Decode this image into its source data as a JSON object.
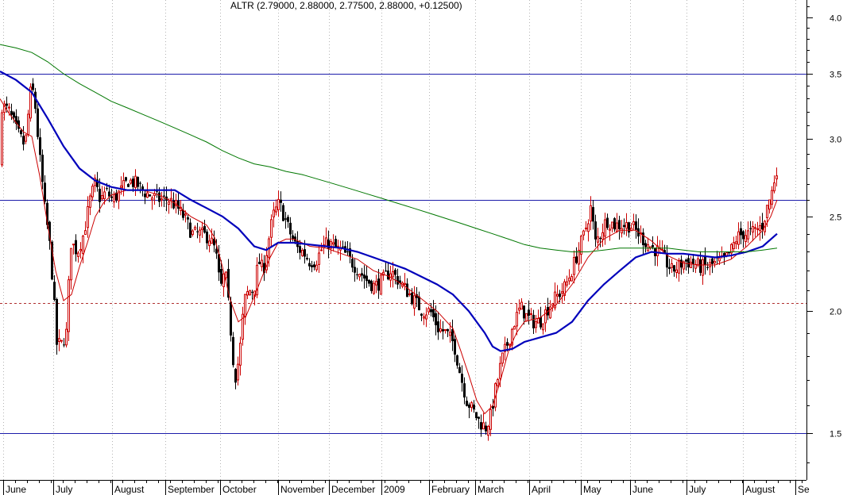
{
  "chart_data": {
    "type": "candlestick",
    "title": "ALTR (2.79000, 2.88000, 2.77500, 2.88000, +0.12500)",
    "scale": "log",
    "ylim": [
      1.32,
      4.3
    ],
    "y_ticks": [
      {
        "value": 4.0,
        "label": "4.0"
      },
      {
        "value": 3.5,
        "label": "3.5"
      },
      {
        "value": 3.0,
        "label": "3.0"
      },
      {
        "value": 2.5,
        "label": "2.5"
      },
      {
        "value": 2.0,
        "label": "2.0"
      },
      {
        "value": 1.5,
        "label": "1.5"
      }
    ],
    "x_labels": [
      "June",
      "July",
      "August",
      "September",
      "October",
      "November",
      "December",
      "2009",
      "February",
      "March",
      "April",
      "May",
      "June",
      "July",
      "August",
      "Se"
    ],
    "horizontal_lines": [
      {
        "value": 3.5,
        "style": "solid",
        "color": "#1c1caa"
      },
      {
        "value": 2.6,
        "style": "solid",
        "color": "#1c1caa"
      },
      {
        "value": 2.04,
        "style": "dashed",
        "color": "#b03030"
      },
      {
        "value": 1.5,
        "style": "solid",
        "color": "#1c1caa"
      }
    ],
    "grid": true,
    "colors": {
      "up": "#cc0000",
      "down": "#000000",
      "ma_short": "#cc0000",
      "ma_mid": "#0000bb",
      "ma_long": "#007700",
      "grid": "#b4b4b4"
    },
    "price_path": [
      [
        1,
        3.25
      ],
      [
        10,
        3.2
      ],
      [
        20,
        3.05
      ],
      [
        30,
        2.95
      ],
      [
        38,
        3.4
      ],
      [
        42,
        3.3
      ],
      [
        48,
        2.9
      ],
      [
        55,
        2.55
      ],
      [
        62,
        2.3
      ],
      [
        70,
        1.85
      ],
      [
        76,
        1.85
      ],
      [
        82,
        1.9
      ],
      [
        88,
        2.35
      ],
      [
        96,
        2.3
      ],
      [
        104,
        2.4
      ],
      [
        112,
        2.6
      ],
      [
        118,
        2.7
      ],
      [
        125,
        2.6
      ],
      [
        132,
        2.65
      ],
      [
        140,
        2.6
      ],
      [
        150,
        2.65
      ],
      [
        160,
        2.72
      ],
      [
        170,
        2.7
      ],
      [
        180,
        2.65
      ],
      [
        190,
        2.62
      ],
      [
        200,
        2.6
      ],
      [
        212,
        2.6
      ],
      [
        222,
        2.55
      ],
      [
        232,
        2.48
      ],
      [
        240,
        2.4
      ],
      [
        250,
        2.4
      ],
      [
        262,
        2.38
      ],
      [
        270,
        2.3
      ],
      [
        276,
        2.1
      ],
      [
        282,
        2.2
      ],
      [
        288,
        1.95
      ],
      [
        294,
        1.7
      ],
      [
        300,
        1.8
      ],
      [
        306,
        2.05
      ],
      [
        312,
        2.1
      ],
      [
        318,
        2.1
      ],
      [
        324,
        2.25
      ],
      [
        330,
        2.2
      ],
      [
        336,
        2.35
      ],
      [
        342,
        2.5
      ],
      [
        350,
        2.58
      ],
      [
        356,
        2.5
      ],
      [
        364,
        2.4
      ],
      [
        372,
        2.32
      ],
      [
        380,
        2.3
      ],
      [
        388,
        2.25
      ],
      [
        396,
        2.25
      ],
      [
        404,
        2.32
      ],
      [
        412,
        2.35
      ],
      [
        420,
        2.32
      ],
      [
        430,
        2.3
      ],
      [
        440,
        2.25
      ],
      [
        450,
        2.2
      ],
      [
        460,
        2.15
      ],
      [
        470,
        2.12
      ],
      [
        480,
        2.15
      ],
      [
        490,
        2.2
      ],
      [
        500,
        2.15
      ],
      [
        510,
        2.1
      ],
      [
        520,
        2.05
      ],
      [
        530,
        2.0
      ],
      [
        540,
        2.0
      ],
      [
        550,
        1.92
      ],
      [
        560,
        1.9
      ],
      [
        570,
        1.85
      ],
      [
        578,
        1.72
      ],
      [
        586,
        1.62
      ],
      [
        594,
        1.58
      ],
      [
        602,
        1.54
      ],
      [
        610,
        1.52
      ],
      [
        616,
        1.56
      ],
      [
        622,
        1.66
      ],
      [
        630,
        1.78
      ],
      [
        638,
        1.86
      ],
      [
        646,
        1.95
      ],
      [
        654,
        2.02
      ],
      [
        662,
        1.97
      ],
      [
        670,
        1.95
      ],
      [
        678,
        1.95
      ],
      [
        686,
        2.0
      ],
      [
        694,
        2.05
      ],
      [
        702,
        2.08
      ],
      [
        710,
        2.12
      ],
      [
        718,
        2.2
      ],
      [
        726,
        2.3
      ],
      [
        734,
        2.4
      ],
      [
        742,
        2.55
      ],
      [
        748,
        2.35
      ],
      [
        754,
        2.4
      ],
      [
        762,
        2.48
      ],
      [
        772,
        2.45
      ],
      [
        782,
        2.45
      ],
      [
        792,
        2.45
      ],
      [
        802,
        2.4
      ],
      [
        812,
        2.35
      ],
      [
        820,
        2.32
      ],
      [
        828,
        2.3
      ],
      [
        836,
        2.25
      ],
      [
        844,
        2.2
      ],
      [
        852,
        2.22
      ],
      [
        860,
        2.25
      ],
      [
        870,
        2.24
      ],
      [
        880,
        2.22
      ],
      [
        890,
        2.22
      ],
      [
        900,
        2.24
      ],
      [
        910,
        2.25
      ],
      [
        918,
        2.3
      ],
      [
        926,
        2.38
      ],
      [
        934,
        2.4
      ],
      [
        942,
        2.4
      ],
      [
        950,
        2.42
      ],
      [
        958,
        2.45
      ],
      [
        964,
        2.55
      ],
      [
        970,
        2.65
      ],
      [
        976,
        2.8
      ]
    ],
    "moving_averages": [
      {
        "color": "#cc0000",
        "points": [
          [
            0,
            3.3
          ],
          [
            10,
            3.2
          ],
          [
            20,
            3.12
          ],
          [
            30,
            3.05
          ],
          [
            40,
            3.02
          ],
          [
            50,
            2.75
          ],
          [
            60,
            2.45
          ],
          [
            70,
            2.2
          ],
          [
            80,
            2.05
          ],
          [
            90,
            2.08
          ],
          [
            100,
            2.22
          ],
          [
            110,
            2.35
          ],
          [
            120,
            2.5
          ],
          [
            130,
            2.58
          ],
          [
            140,
            2.63
          ],
          [
            160,
            2.66
          ],
          [
            180,
            2.66
          ],
          [
            200,
            2.63
          ],
          [
            220,
            2.58
          ],
          [
            240,
            2.5
          ],
          [
            260,
            2.45
          ],
          [
            270,
            2.38
          ],
          [
            280,
            2.22
          ],
          [
            290,
            2.05
          ],
          [
            300,
            1.95
          ],
          [
            310,
            1.98
          ],
          [
            320,
            2.07
          ],
          [
            330,
            2.17
          ],
          [
            340,
            2.27
          ],
          [
            350,
            2.35
          ],
          [
            360,
            2.37
          ],
          [
            370,
            2.37
          ],
          [
            390,
            2.33
          ],
          [
            410,
            2.32
          ],
          [
            430,
            2.29
          ],
          [
            450,
            2.26
          ],
          [
            470,
            2.2
          ],
          [
            490,
            2.17
          ],
          [
            510,
            2.12
          ],
          [
            530,
            2.06
          ],
          [
            550,
            2.0
          ],
          [
            570,
            1.92
          ],
          [
            580,
            1.82
          ],
          [
            590,
            1.72
          ],
          [
            600,
            1.62
          ],
          [
            610,
            1.57
          ],
          [
            620,
            1.6
          ],
          [
            630,
            1.7
          ],
          [
            640,
            1.82
          ],
          [
            650,
            1.9
          ],
          [
            660,
            1.95
          ],
          [
            680,
            1.97
          ],
          [
            700,
            2.03
          ],
          [
            720,
            2.13
          ],
          [
            740,
            2.27
          ],
          [
            760,
            2.37
          ],
          [
            780,
            2.42
          ],
          [
            800,
            2.42
          ],
          [
            820,
            2.36
          ],
          [
            840,
            2.28
          ],
          [
            860,
            2.24
          ],
          [
            880,
            2.23
          ],
          [
            900,
            2.23
          ],
          [
            920,
            2.26
          ],
          [
            940,
            2.33
          ],
          [
            960,
            2.42
          ],
          [
            970,
            2.5
          ],
          [
            978,
            2.6
          ]
        ]
      },
      {
        "color": "#0000bb",
        "width": 2.2,
        "points": [
          [
            0,
            3.52
          ],
          [
            20,
            3.45
          ],
          [
            40,
            3.35
          ],
          [
            60,
            3.15
          ],
          [
            80,
            2.95
          ],
          [
            100,
            2.8
          ],
          [
            120,
            2.72
          ],
          [
            140,
            2.68
          ],
          [
            160,
            2.66
          ],
          [
            180,
            2.66
          ],
          [
            200,
            2.66
          ],
          [
            220,
            2.66
          ],
          [
            240,
            2.6
          ],
          [
            260,
            2.55
          ],
          [
            280,
            2.5
          ],
          [
            300,
            2.43
          ],
          [
            320,
            2.33
          ],
          [
            335,
            2.31
          ],
          [
            350,
            2.35
          ],
          [
            370,
            2.35
          ],
          [
            390,
            2.34
          ],
          [
            410,
            2.33
          ],
          [
            430,
            2.32
          ],
          [
            450,
            2.3
          ],
          [
            470,
            2.27
          ],
          [
            490,
            2.24
          ],
          [
            510,
            2.21
          ],
          [
            530,
            2.17
          ],
          [
            550,
            2.13
          ],
          [
            570,
            2.08
          ],
          [
            590,
            2.0
          ],
          [
            610,
            1.9
          ],
          [
            620,
            1.84
          ],
          [
            630,
            1.82
          ],
          [
            645,
            1.83
          ],
          [
            660,
            1.86
          ],
          [
            680,
            1.88
          ],
          [
            700,
            1.9
          ],
          [
            720,
            1.95
          ],
          [
            740,
            2.05
          ],
          [
            760,
            2.13
          ],
          [
            780,
            2.2
          ],
          [
            800,
            2.27
          ],
          [
            820,
            2.3
          ],
          [
            840,
            2.29
          ],
          [
            860,
            2.29
          ],
          [
            880,
            2.28
          ],
          [
            900,
            2.27
          ],
          [
            920,
            2.28
          ],
          [
            940,
            2.3
          ],
          [
            960,
            2.33
          ],
          [
            978,
            2.4
          ]
        ]
      },
      {
        "color": "#007700",
        "points": [
          [
            0,
            3.75
          ],
          [
            20,
            3.72
          ],
          [
            40,
            3.68
          ],
          [
            60,
            3.6
          ],
          [
            80,
            3.5
          ],
          [
            100,
            3.42
          ],
          [
            120,
            3.35
          ],
          [
            140,
            3.28
          ],
          [
            160,
            3.23
          ],
          [
            180,
            3.18
          ],
          [
            200,
            3.13
          ],
          [
            220,
            3.08
          ],
          [
            240,
            3.03
          ],
          [
            260,
            2.98
          ],
          [
            280,
            2.92
          ],
          [
            300,
            2.87
          ],
          [
            320,
            2.83
          ],
          [
            340,
            2.81
          ],
          [
            360,
            2.78
          ],
          [
            380,
            2.76
          ],
          [
            400,
            2.73
          ],
          [
            420,
            2.7
          ],
          [
            440,
            2.67
          ],
          [
            460,
            2.64
          ],
          [
            480,
            2.61
          ],
          [
            500,
            2.58
          ],
          [
            520,
            2.55
          ],
          [
            540,
            2.52
          ],
          [
            560,
            2.49
          ],
          [
            580,
            2.46
          ],
          [
            600,
            2.43
          ],
          [
            620,
            2.4
          ],
          [
            640,
            2.37
          ],
          [
            660,
            2.34
          ],
          [
            680,
            2.32
          ],
          [
            700,
            2.31
          ],
          [
            720,
            2.3
          ],
          [
            740,
            2.3
          ],
          [
            760,
            2.31
          ],
          [
            780,
            2.32
          ],
          [
            800,
            2.32
          ],
          [
            820,
            2.32
          ],
          [
            840,
            2.32
          ],
          [
            860,
            2.31
          ],
          [
            880,
            2.3
          ],
          [
            900,
            2.3
          ],
          [
            920,
            2.3
          ],
          [
            940,
            2.3
          ],
          [
            960,
            2.31
          ],
          [
            978,
            2.32
          ]
        ]
      }
    ]
  }
}
